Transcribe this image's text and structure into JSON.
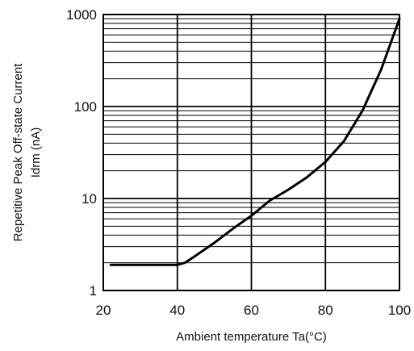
{
  "chart_data": {
    "type": "line",
    "title": "",
    "xlabel": "Ambient temperature Ta(°C)",
    "ylabel_lines": [
      "Repetitive Peak Off-state Current",
      "Idrm (nA)"
    ],
    "xlim": [
      20,
      100
    ],
    "ylim": [
      1,
      1000
    ],
    "yscale": "log",
    "grid": true,
    "x_ticks": [
      20,
      40,
      60,
      80,
      100
    ],
    "x_tick_labels": [
      "20",
      "40",
      "60",
      "80",
      "100"
    ],
    "y_ticks": [
      1,
      10,
      100,
      1000
    ],
    "y_tick_labels": [
      "1",
      "10",
      "100",
      "1000"
    ],
    "series": [
      {
        "x": [
          22,
          30,
          40,
          42,
          45,
          50,
          55,
          60,
          65,
          70,
          75,
          80,
          85,
          90,
          95,
          100
        ],
        "y": [
          1.9,
          1.9,
          1.9,
          2.0,
          2.4,
          3.3,
          4.7,
          6.5,
          9.5,
          12.5,
          17,
          25,
          42,
          90,
          250,
          900
        ]
      }
    ]
  }
}
